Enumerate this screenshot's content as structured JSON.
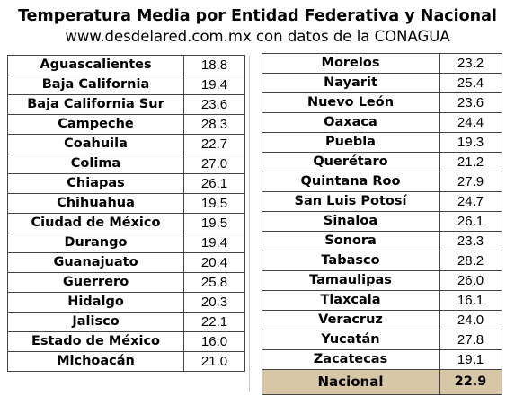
{
  "header": {
    "title": "Temperatura Media por Entidad Federativa y Nacional",
    "subtitle": "www.desdelared.com.mx con datos de la CONAGUA"
  },
  "table_left": [
    {
      "state": "Aguascalientes",
      "value": "18.8"
    },
    {
      "state": "Baja California",
      "value": "19.4"
    },
    {
      "state": "Baja California Sur",
      "value": "23.6"
    },
    {
      "state": "Campeche",
      "value": "28.3"
    },
    {
      "state": "Coahuila",
      "value": "22.7"
    },
    {
      "state": "Colima",
      "value": "27.0"
    },
    {
      "state": "Chiapas",
      "value": "26.1"
    },
    {
      "state": "Chihuahua",
      "value": "19.5"
    },
    {
      "state": "Ciudad de México",
      "value": "19.5"
    },
    {
      "state": "Durango",
      "value": "19.4"
    },
    {
      "state": "Guanajuato",
      "value": "20.4"
    },
    {
      "state": "Guerrero",
      "value": "25.8"
    },
    {
      "state": "Hidalgo",
      "value": "20.3"
    },
    {
      "state": "Jalisco",
      "value": "22.1"
    },
    {
      "state": "Estado de México",
      "value": "16.0"
    },
    {
      "state": "Michoacán",
      "value": "21.0"
    }
  ],
  "table_right": [
    {
      "state": "Morelos",
      "value": "23.2"
    },
    {
      "state": "Nayarit",
      "value": "25.4"
    },
    {
      "state": "Nuevo León",
      "value": "23.6"
    },
    {
      "state": "Oaxaca",
      "value": "24.4"
    },
    {
      "state": "Puebla",
      "value": "19.3"
    },
    {
      "state": "Querétaro",
      "value": "21.2"
    },
    {
      "state": "Quintana Roo",
      "value": "27.9"
    },
    {
      "state": "San Luis Potosí",
      "value": "24.7"
    },
    {
      "state": "Sinaloa",
      "value": "26.1"
    },
    {
      "state": "Sonora",
      "value": "23.3"
    },
    {
      "state": "Tabasco",
      "value": "28.2"
    },
    {
      "state": "Tamaulipas",
      "value": "26.0"
    },
    {
      "state": "Tlaxcala",
      "value": "16.1"
    },
    {
      "state": "Veracruz",
      "value": "24.0"
    },
    {
      "state": "Yucatán",
      "value": "27.8"
    },
    {
      "state": "Zacatecas",
      "value": "19.1"
    }
  ],
  "national": {
    "label": "Nacional",
    "value": "22.9",
    "highlight_color": "#d7c7a6"
  }
}
